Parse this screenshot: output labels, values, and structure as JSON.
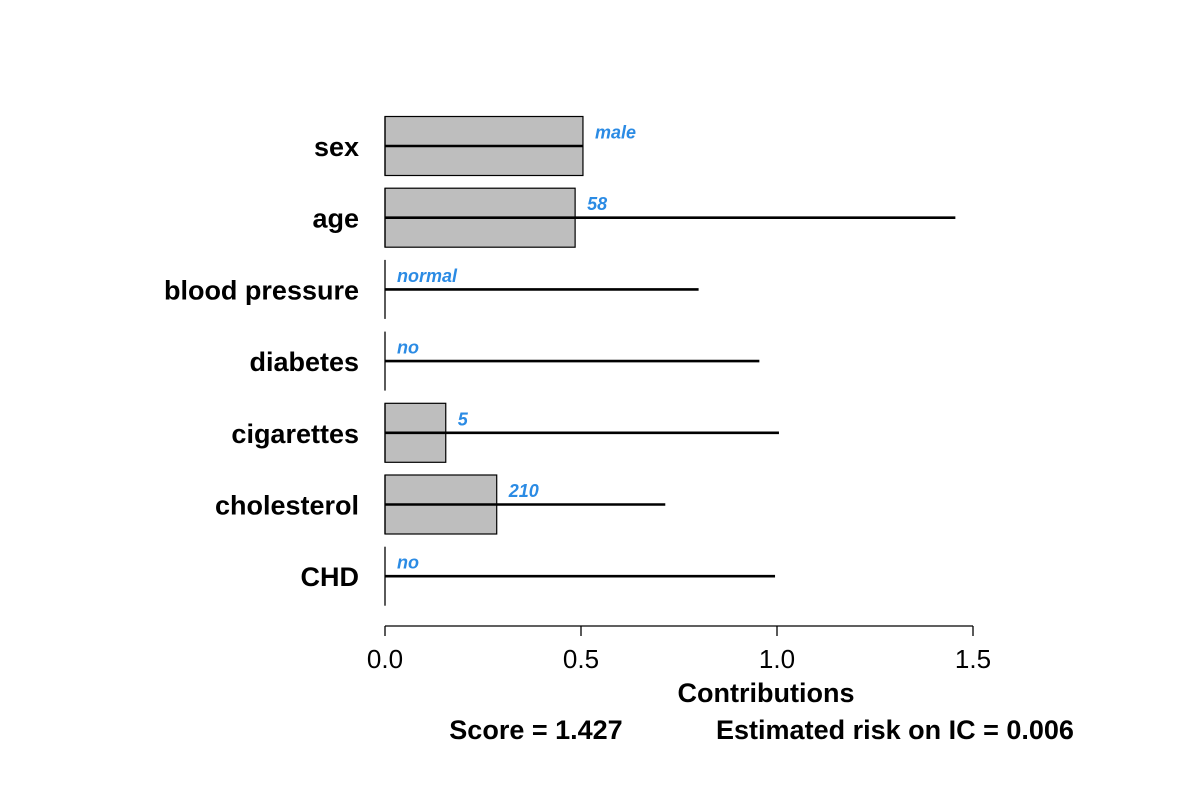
{
  "chart_data": {
    "type": "bar",
    "orientation": "horizontal",
    "categories": [
      "sex",
      "age",
      "blood pressure",
      "diabetes",
      "cigarettes",
      "cholesterol",
      "CHD"
    ],
    "values": [
      0.505,
      0.485,
      0.0,
      0.0,
      0.155,
      0.285,
      0.0
    ],
    "ranges": [
      0.505,
      1.455,
      0.8,
      0.955,
      1.005,
      0.715,
      0.995
    ],
    "value_labels": [
      "male",
      "58",
      "normal",
      "no",
      "5",
      "210",
      "no"
    ],
    "xlabel": "Contributions",
    "ylabel": "",
    "title": "",
    "xlim": [
      0,
      1.5
    ],
    "xticks": [
      "0.0",
      "0.5",
      "1.0",
      "1.5"
    ],
    "xtick_values": [
      0,
      0.5,
      1.0,
      1.5
    ],
    "grid": false,
    "colors": {
      "bar_fill": "#bebebe",
      "bar_edge": "#000000",
      "value_label": "#2b8be4",
      "range_line": "#000000"
    }
  },
  "footer": {
    "score": "Score = 1.427",
    "risk": "Estimated risk on IC = 0.006"
  }
}
